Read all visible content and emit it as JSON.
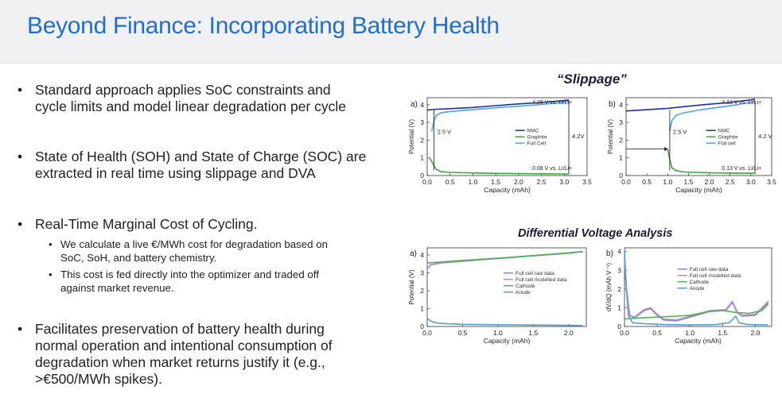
{
  "slide": {
    "title": "Beyond Finance: Incorporating Battery Health",
    "bullets": [
      {
        "lines": [
          "Standard approach applies SoC constraints and",
          "cycle limits and model linear degradation per cycle"
        ]
      },
      {
        "lines": [
          "State of Health (SOH) and State of Charge (SOC) are",
          "extracted in real time using slippage and DVA"
        ]
      },
      {
        "lines": [
          "Real-Time Marginal Cost of Cycling."
        ],
        "sub": [
          {
            "lines": [
              "We calculate a live €/MWh cost for degradation based on",
              "SoC, SoH, and battery chemistry."
            ]
          },
          {
            "lines": [
              "This cost is fed directly into the optimizer and traded off",
              "against market revenue."
            ]
          }
        ]
      },
      {
        "lines": [
          "Facilitates preservation of battery health during",
          "normal operation and intentional consumption of",
          "degradation when market returns justify it (e.g.,",
          ">€500/MWh spikes)."
        ]
      }
    ]
  },
  "figures": {
    "slippage_heading": "“Slippage”",
    "dva_heading": "Differential Voltage Analysis"
  },
  "colors": {
    "title": "#1f6fd1",
    "nmc": "#1f2f9e",
    "graphite": "#3aa83a",
    "full_cell": "#4aa6e0",
    "raw": "#7f88c9",
    "modelled": "#b88ad1",
    "cathode": "#55b055",
    "anode": "#4f9fd0"
  },
  "chart_data": [
    {
      "type": "line",
      "panel": "a)",
      "xlabel": "Capacity (mAh)",
      "ylabel": "Potential (V)",
      "xlim": [
        0,
        3.5
      ],
      "ylim": [
        0,
        4.4
      ],
      "xticks": [
        "0.0",
        "0.5",
        "1.0",
        "1.5",
        "2.0",
        "2.5",
        "3.0",
        "3.5"
      ],
      "yticks": [
        "0",
        "1",
        "2",
        "3",
        "4"
      ],
      "legend": [
        "NMC",
        "Graphite",
        "Full Cell"
      ],
      "annotations": {
        "top": "4.28 V vs. Li/Li+",
        "bottom": "0.08 V vs. Li/Li+",
        "left": "2.5 V",
        "right": "4.2V"
      },
      "series": [
        {
          "name": "NMC",
          "color": "#1f2f9e",
          "x": [
            0,
            0.2,
            0.5,
            1.0,
            1.5,
            2.0,
            2.5,
            3.0,
            3.1
          ],
          "y": [
            3.7,
            3.75,
            3.78,
            3.85,
            3.95,
            4.05,
            4.13,
            4.24,
            4.28
          ]
        },
        {
          "name": "Graphite",
          "color": "#3aa83a",
          "x": [
            0.05,
            0.1,
            0.15,
            0.2,
            0.3,
            0.5,
            1.0,
            1.5,
            2.0,
            2.5,
            3.0,
            3.1
          ],
          "y": [
            1.0,
            0.8,
            0.55,
            0.35,
            0.22,
            0.18,
            0.15,
            0.12,
            0.11,
            0.1,
            0.09,
            0.08
          ]
        },
        {
          "name": "Full Cell",
          "color": "#4aa6e0",
          "x": [
            0.1,
            0.15,
            0.2,
            0.3,
            0.5,
            1.0,
            1.5,
            2.0,
            2.5,
            3.0,
            3.1
          ],
          "y": [
            2.5,
            3.1,
            3.4,
            3.55,
            3.62,
            3.72,
            3.83,
            3.92,
            4.02,
            4.15,
            4.2
          ]
        }
      ]
    },
    {
      "type": "line",
      "panel": "b)",
      "xlabel": "Capacity (mAh)",
      "ylabel": "Potential (V)",
      "xlim": [
        0,
        3.5
      ],
      "ylim": [
        0,
        4.4
      ],
      "xticks": [
        "0.0",
        "0.5",
        "1.0",
        "1.5",
        "2.0",
        "2.5",
        "3.0",
        "3.5"
      ],
      "yticks": [
        "0",
        "1",
        "2",
        "3",
        "4"
      ],
      "legend": [
        "NMC",
        "Graphite",
        "Full cell"
      ],
      "annotations": {
        "top": "4.33 V vs. Li/Li+",
        "bottom": "0.13 V vs. Li/Li+",
        "left": "2.5 V",
        "right": "4.2 V"
      },
      "series": [
        {
          "name": "NMC",
          "color": "#1f2f9e",
          "x": [
            0,
            0.5,
            1.0,
            1.5,
            2.0,
            2.5,
            3.0,
            3.1
          ],
          "y": [
            3.65,
            3.72,
            3.8,
            3.92,
            4.03,
            4.13,
            4.28,
            4.33
          ]
        },
        {
          "name": "Graphite",
          "color": "#3aa83a",
          "x": [
            1.0,
            1.05,
            1.1,
            1.2,
            1.4,
            1.8,
            2.2,
            2.6,
            3.0,
            3.1
          ],
          "y": [
            1.5,
            0.9,
            0.45,
            0.28,
            0.2,
            0.17,
            0.15,
            0.14,
            0.13,
            0.13
          ]
        },
        {
          "name": "Full cell",
          "color": "#4aa6e0",
          "x": [
            1.05,
            1.1,
            1.2,
            1.4,
            1.8,
            2.2,
            2.6,
            3.0,
            3.1
          ],
          "y": [
            2.5,
            3.1,
            3.4,
            3.55,
            3.72,
            3.85,
            3.98,
            4.15,
            4.2
          ]
        }
      ]
    },
    {
      "type": "line",
      "panel": "a)",
      "xlabel": "Capacity (mAh)",
      "ylabel": "Potential (V)",
      "xlim": [
        0,
        2.25
      ],
      "ylim": [
        0,
        4.4
      ],
      "xticks": [
        "0.0",
        "0.5",
        "1.0",
        "1.5",
        "2.0"
      ],
      "yticks": [
        "0",
        "1",
        "2",
        "3",
        "4"
      ],
      "legend": [
        "Full cell raw data",
        "Full cell modelled data",
        "Cathode",
        "Anode"
      ],
      "series": [
        {
          "name": "Full cell raw data",
          "color": "#7f88c9",
          "x": [
            0,
            0.05,
            0.2,
            0.5,
            1.0,
            1.5,
            2.0,
            2.2
          ],
          "y": [
            3.2,
            3.45,
            3.55,
            3.65,
            3.8,
            3.95,
            4.1,
            4.18
          ]
        },
        {
          "name": "Full cell modelled data",
          "color": "#b88ad1",
          "x": [
            0,
            0.05,
            0.2,
            0.5,
            1.0,
            1.5,
            2.0,
            2.2
          ],
          "y": [
            3.22,
            3.46,
            3.56,
            3.66,
            3.81,
            3.96,
            4.11,
            4.19
          ]
        },
        {
          "name": "Cathode",
          "color": "#55b055",
          "x": [
            0,
            0.5,
            1.0,
            1.5,
            2.0,
            2.2
          ],
          "y": [
            3.55,
            3.7,
            3.82,
            3.97,
            4.12,
            4.2
          ]
        },
        {
          "name": "Anode",
          "color": "#4f9fd0",
          "x": [
            0,
            0.05,
            0.15,
            0.5,
            1.0,
            1.5,
            2.0,
            2.2
          ],
          "y": [
            0.45,
            0.3,
            0.18,
            0.12,
            0.1,
            0.08,
            0.06,
            0.05
          ]
        }
      ]
    },
    {
      "type": "line",
      "panel": "b)",
      "xlabel": "Capacity (mAh)",
      "ylabel": "dV/dQ (mAh V⁻¹)",
      "xlim": [
        0,
        2.25
      ],
      "ylim": [
        0,
        4.2
      ],
      "xticks": [
        "0.0",
        "0.5",
        "1.0",
        "1.5",
        "2.0"
      ],
      "yticks": [
        "0",
        "1",
        "2",
        "3",
        "4"
      ],
      "legend": [
        "Full cell raw data",
        "Full cell modelled data",
        "Cathode",
        "Anode"
      ],
      "series": [
        {
          "name": "Full cell raw data",
          "color": "#7f88c9",
          "x": [
            0,
            0.03,
            0.08,
            0.15,
            0.3,
            0.4,
            0.5,
            0.6,
            0.8,
            1.0,
            1.3,
            1.55,
            1.65,
            1.72,
            1.8,
            2.0,
            2.2
          ],
          "y": [
            3.8,
            2.0,
            0.6,
            0.45,
            0.85,
            0.95,
            0.6,
            0.35,
            0.3,
            0.5,
            0.8,
            0.85,
            1.3,
            0.75,
            0.55,
            0.6,
            1.3
          ]
        },
        {
          "name": "Full cell modelled data",
          "color": "#b88ad1",
          "x": [
            0,
            0.03,
            0.08,
            0.15,
            0.3,
            0.4,
            0.5,
            0.6,
            0.8,
            1.0,
            1.3,
            1.55,
            1.65,
            1.72,
            1.8,
            2.0,
            2.2
          ],
          "y": [
            3.6,
            1.9,
            0.6,
            0.5,
            0.9,
            1.0,
            0.65,
            0.4,
            0.35,
            0.55,
            0.85,
            0.9,
            1.35,
            0.8,
            0.6,
            0.65,
            1.35
          ]
        },
        {
          "name": "Cathode",
          "color": "#55b055",
          "x": [
            0,
            0.2,
            0.5,
            0.8,
            1.0,
            1.3,
            1.5,
            1.7,
            1.9,
            2.1,
            2.2
          ],
          "y": [
            0.4,
            0.45,
            0.5,
            0.55,
            0.6,
            0.8,
            0.85,
            0.75,
            0.7,
            0.85,
            1.2
          ]
        },
        {
          "name": "Anode",
          "color": "#4f9fd0",
          "x": [
            0,
            0.02,
            0.06,
            0.12,
            0.3,
            0.6,
            1.0,
            1.4,
            1.6,
            1.7,
            1.75,
            1.9,
            2.2
          ],
          "y": [
            4.0,
            2.5,
            0.6,
            0.2,
            0.15,
            0.1,
            0.08,
            0.1,
            0.2,
            0.55,
            0.2,
            0.1,
            0.08
          ]
        }
      ]
    }
  ]
}
